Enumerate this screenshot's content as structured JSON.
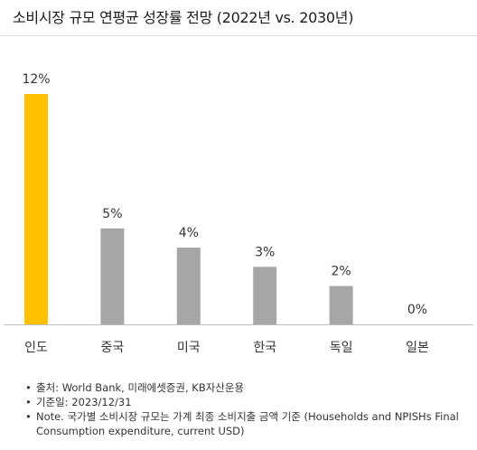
{
  "title": "소비시장 규모 연평균 성장률 전망 (2022년 vs. 2030년)",
  "chart_data": {
    "type": "bar",
    "categories": [
      "인도",
      "중국",
      "미국",
      "한국",
      "독일",
      "일본"
    ],
    "values": [
      12,
      5,
      4,
      3,
      2,
      0
    ],
    "value_labels": [
      "12%",
      "5%",
      "4%",
      "3%",
      "2%",
      "0%"
    ],
    "colors": [
      "#FFC000",
      "#A6A6A6",
      "#A6A6A6",
      "#A6A6A6",
      "#A6A6A6",
      "#A6A6A6"
    ],
    "ylim": [
      0,
      12
    ],
    "grid": false,
    "legend": "none",
    "axis_color": "#BFBFBF"
  },
  "notes": [
    "출처: World Bank, 미래에셋증권, KB자산운용",
    "기준일: 2023/12/31",
    "Note. 국가별 소비시장 규모는 가계 최종 소비지출 금액 기준 (Households and NPISHs Final Consumption expenditure, current USD)"
  ]
}
